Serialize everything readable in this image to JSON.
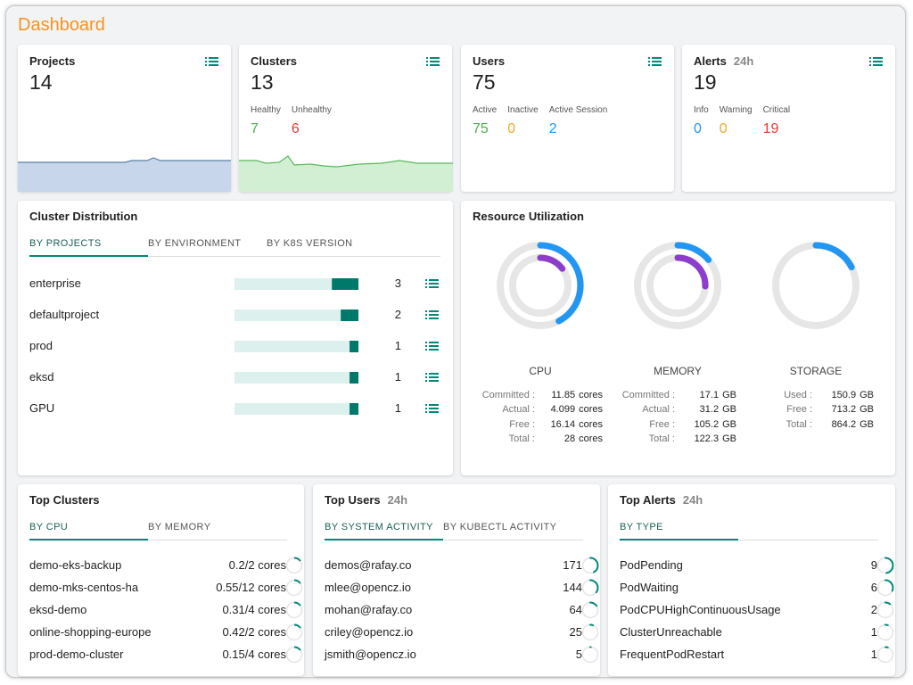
{
  "header": {
    "title": "Dashboard"
  },
  "cards": [
    {
      "title": "Projects",
      "value": 14
    },
    {
      "title": "Clusters",
      "value": 13,
      "stats": [
        {
          "label": "Healthy",
          "value": 7,
          "color": "#4caf50"
        },
        {
          "label": "Unhealthy",
          "value": 6,
          "color": "#e53935"
        }
      ]
    },
    {
      "title": "Users",
      "value": 75,
      "stats": [
        {
          "label": "Active",
          "value": 75,
          "color": "#4caf50"
        },
        {
          "label": "Inactive",
          "value": 0,
          "color": "#f5a623"
        },
        {
          "label": "Active Session",
          "value": 2,
          "color": "#2196f3"
        }
      ]
    },
    {
      "title": "Alerts",
      "badge": "24h",
      "value": 19,
      "stats": [
        {
          "label": "Info",
          "value": 0,
          "color": "#2196f3"
        },
        {
          "label": "Warning",
          "value": 0,
          "color": "#f5a623"
        },
        {
          "label": "Critical",
          "value": 19,
          "color": "#e53935"
        }
      ]
    }
  ],
  "cluster_distribution": {
    "title": "Cluster Distribution",
    "tabs": [
      "BY PROJECTS",
      "BY ENVIRONMENT",
      "BY K8S VERSION"
    ],
    "rows": [
      {
        "name": "enterprise",
        "count": 3
      },
      {
        "name": "defaultproject",
        "count": 2
      },
      {
        "name": "prod",
        "count": 1
      },
      {
        "name": "eksd",
        "count": 1
      },
      {
        "name": "GPU",
        "count": 1
      }
    ]
  },
  "resource_utilization": {
    "title": "Resource Utilization",
    "gauges": [
      {
        "name": "CPU",
        "rows": [
          {
            "label": "Committed :",
            "value": 11.85,
            "unit": "cores"
          },
          {
            "label": "Actual :",
            "value": 4.099,
            "unit": "cores"
          },
          {
            "label": "Free :",
            "value": 16.14,
            "unit": "cores"
          },
          {
            "label": "Total :",
            "value": 28,
            "unit": "cores"
          }
        ]
      },
      {
        "name": "MEMORY",
        "rows": [
          {
            "label": "Committed :",
            "value": 17.1,
            "unit": "GB"
          },
          {
            "label": "Actual :",
            "value": 31.2,
            "unit": "GB"
          },
          {
            "label": "Free :",
            "value": 105.2,
            "unit": "GB"
          },
          {
            "label": "Total :",
            "value": 122.3,
            "unit": "GB"
          }
        ]
      },
      {
        "name": "STORAGE",
        "rows": [
          {
            "label": "Used :",
            "value": 150.9,
            "unit": "GB"
          },
          {
            "label": "Free :",
            "value": 713.2,
            "unit": "GB"
          },
          {
            "label": "Total :",
            "value": 864.2,
            "unit": "GB"
          }
        ]
      }
    ]
  },
  "top_clusters": {
    "title": "Top Clusters",
    "tabs": [
      "BY CPU",
      "BY MEMORY"
    ],
    "rows": [
      {
        "name": "demo-eks-backup",
        "usage": "0.2/2 cores"
      },
      {
        "name": "demo-mks-centos-ha",
        "usage": "0.55/12 cores"
      },
      {
        "name": "eksd-demo",
        "usage": "0.31/4 cores"
      },
      {
        "name": "online-shopping-europe",
        "usage": "0.42/2 cores"
      },
      {
        "name": "prod-demo-cluster",
        "usage": "0.15/4 cores"
      }
    ]
  },
  "top_users": {
    "title": "Top Users",
    "badge": "24h",
    "tabs": [
      "BY SYSTEM ACTIVITY",
      "BY KUBECTL ACTIVITY"
    ],
    "rows": [
      {
        "name": "demos@rafay.co",
        "count": 171
      },
      {
        "name": "mlee@opencz.io",
        "count": 144
      },
      {
        "name": "mohan@rafay.co",
        "count": 64
      },
      {
        "name": "criley@opencz.io",
        "count": 25
      },
      {
        "name": "jsmith@opencz.io",
        "count": 5
      }
    ]
  },
  "top_alerts": {
    "title": "Top Alerts",
    "badge": "24h",
    "tabs": [
      "BY TYPE"
    ],
    "rows": [
      {
        "name": "PodPending",
        "count": 9
      },
      {
        "name": "PodWaiting",
        "count": 6
      },
      {
        "name": "PodCPUHighContinuousUsage",
        "count": 2
      },
      {
        "name": "ClusterUnreachable",
        "count": 1
      },
      {
        "name": "FrequentPodRestart",
        "count": 1
      }
    ]
  }
}
